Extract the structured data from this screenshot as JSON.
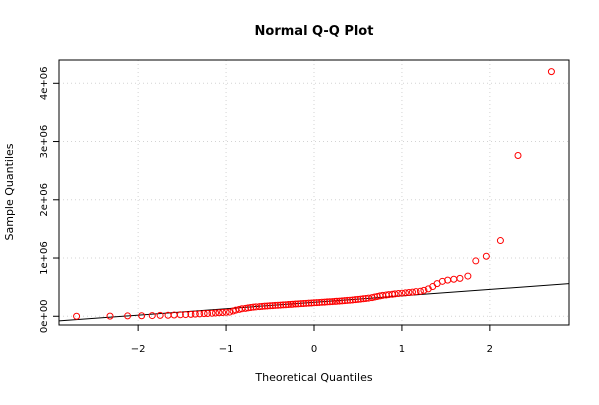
{
  "chart_data": {
    "type": "scatter",
    "title": "Normal Q-Q Plot",
    "xlabel": "Theoretical Quantiles",
    "ylabel": "Sample Quantiles",
    "xlim": [
      -2.9,
      2.9
    ],
    "ylim": [
      -150000,
      4400000
    ],
    "x_ticks": [
      -2,
      -1,
      0,
      1,
      2
    ],
    "x_tick_labels": [
      "−2",
      "−1",
      "0",
      "1",
      "2"
    ],
    "y_ticks": [
      0,
      1000000,
      2000000,
      3000000,
      4000000
    ],
    "y_tick_labels": [
      "0e+00",
      "1e+06",
      "2e+06",
      "3e+06",
      "4e+06"
    ],
    "grid": true,
    "point_color": "#ff0000",
    "line_color": "#000000",
    "reference_line": [
      {
        "x": -2.9,
        "y": -80000
      },
      {
        "x": 2.9,
        "y": 560000
      }
    ],
    "series": [
      {
        "points": [
          {
            "x": -2.7,
            "y": 0
          },
          {
            "x": -2.32,
            "y": 3000
          },
          {
            "x": -2.12,
            "y": 6000
          },
          {
            "x": -1.96,
            "y": 9000
          },
          {
            "x": -1.84,
            "y": 12000
          },
          {
            "x": -1.75,
            "y": 15000
          },
          {
            "x": -1.66,
            "y": 18000
          },
          {
            "x": -1.59,
            "y": 21000
          },
          {
            "x": -1.52,
            "y": 25000
          },
          {
            "x": -1.46,
            "y": 29000
          },
          {
            "x": -1.4,
            "y": 33000
          },
          {
            "x": -1.35,
            "y": 37000
          },
          {
            "x": -1.3,
            "y": 41000
          },
          {
            "x": -1.25,
            "y": 45000
          },
          {
            "x": -1.21,
            "y": 48000
          },
          {
            "x": -1.16,
            "y": 52000
          },
          {
            "x": -1.12,
            "y": 56000
          },
          {
            "x": -1.08,
            "y": 60000
          },
          {
            "x": -1.04,
            "y": 64000
          },
          {
            "x": -1.0,
            "y": 68000
          },
          {
            "x": -0.96,
            "y": 72000
          },
          {
            "x": -0.92,
            "y": 90000
          },
          {
            "x": -0.89,
            "y": 105000
          },
          {
            "x": -0.85,
            "y": 118000
          },
          {
            "x": -0.82,
            "y": 128000
          },
          {
            "x": -0.78,
            "y": 136000
          },
          {
            "x": -0.75,
            "y": 143000
          },
          {
            "x": -0.72,
            "y": 150000
          },
          {
            "x": -0.69,
            "y": 156000
          },
          {
            "x": -0.66,
            "y": 161000
          },
          {
            "x": -0.62,
            "y": 166000
          },
          {
            "x": -0.59,
            "y": 170000
          },
          {
            "x": -0.56,
            "y": 174000
          },
          {
            "x": -0.53,
            "y": 177000
          },
          {
            "x": -0.5,
            "y": 180000
          },
          {
            "x": -0.47,
            "y": 183000
          },
          {
            "x": -0.44,
            "y": 186000
          },
          {
            "x": -0.41,
            "y": 189000
          },
          {
            "x": -0.38,
            "y": 192000
          },
          {
            "x": -0.35,
            "y": 195000
          },
          {
            "x": -0.32,
            "y": 198000
          },
          {
            "x": -0.29,
            "y": 201000
          },
          {
            "x": -0.26,
            "y": 204000
          },
          {
            "x": -0.24,
            "y": 207000
          },
          {
            "x": -0.21,
            "y": 210000
          },
          {
            "x": -0.18,
            "y": 213000
          },
          {
            "x": -0.15,
            "y": 216000
          },
          {
            "x": -0.12,
            "y": 219000
          },
          {
            "x": -0.09,
            "y": 222000
          },
          {
            "x": -0.06,
            "y": 225000
          },
          {
            "x": -0.03,
            "y": 228000
          },
          {
            "x": 0.0,
            "y": 231000
          },
          {
            "x": 0.03,
            "y": 234000
          },
          {
            "x": 0.06,
            "y": 237000
          },
          {
            "x": 0.09,
            "y": 240000
          },
          {
            "x": 0.12,
            "y": 243000
          },
          {
            "x": 0.15,
            "y": 246000
          },
          {
            "x": 0.18,
            "y": 249000
          },
          {
            "x": 0.21,
            "y": 252000
          },
          {
            "x": 0.24,
            "y": 255000
          },
          {
            "x": 0.26,
            "y": 258000
          },
          {
            "x": 0.29,
            "y": 261000
          },
          {
            "x": 0.32,
            "y": 264000
          },
          {
            "x": 0.35,
            "y": 268000
          },
          {
            "x": 0.38,
            "y": 272000
          },
          {
            "x": 0.41,
            "y": 276000
          },
          {
            "x": 0.44,
            "y": 280000
          },
          {
            "x": 0.47,
            "y": 285000
          },
          {
            "x": 0.5,
            "y": 290000
          },
          {
            "x": 0.53,
            "y": 295000
          },
          {
            "x": 0.56,
            "y": 300000
          },
          {
            "x": 0.59,
            "y": 306000
          },
          {
            "x": 0.62,
            "y": 312000
          },
          {
            "x": 0.66,
            "y": 320000
          },
          {
            "x": 0.69,
            "y": 330000
          },
          {
            "x": 0.72,
            "y": 340000
          },
          {
            "x": 0.75,
            "y": 350000
          },
          {
            "x": 0.78,
            "y": 358000
          },
          {
            "x": 0.82,
            "y": 365000
          },
          {
            "x": 0.85,
            "y": 372000
          },
          {
            "x": 0.89,
            "y": 378000
          },
          {
            "x": 0.92,
            "y": 384000
          },
          {
            "x": 0.96,
            "y": 390000
          },
          {
            "x": 1.0,
            "y": 396000
          },
          {
            "x": 1.04,
            "y": 402000
          },
          {
            "x": 1.08,
            "y": 408000
          },
          {
            "x": 1.12,
            "y": 415000
          },
          {
            "x": 1.16,
            "y": 422000
          },
          {
            "x": 1.21,
            "y": 430000
          },
          {
            "x": 1.25,
            "y": 445000
          },
          {
            "x": 1.3,
            "y": 470000
          },
          {
            "x": 1.35,
            "y": 510000
          },
          {
            "x": 1.4,
            "y": 560000
          },
          {
            "x": 1.46,
            "y": 600000
          },
          {
            "x": 1.52,
            "y": 620000
          },
          {
            "x": 1.59,
            "y": 635000
          },
          {
            "x": 1.66,
            "y": 650000
          },
          {
            "x": 1.75,
            "y": 690000
          },
          {
            "x": 1.84,
            "y": 950000
          },
          {
            "x": 1.96,
            "y": 1030000
          },
          {
            "x": 2.12,
            "y": 1300000
          },
          {
            "x": 2.32,
            "y": 2760000
          },
          {
            "x": 2.7,
            "y": 4200000
          }
        ]
      }
    ]
  }
}
